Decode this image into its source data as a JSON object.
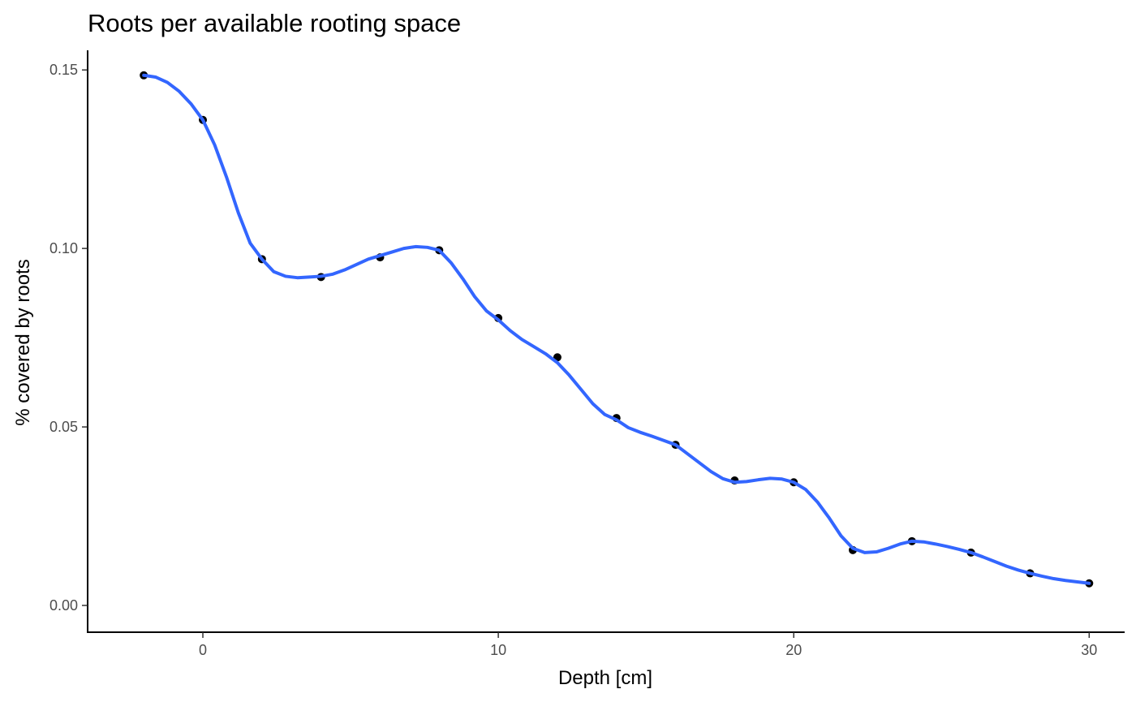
{
  "chart_data": {
    "type": "line",
    "title": "Roots per available rooting space",
    "xlabel": "Depth [cm]",
    "ylabel": "% covered by roots",
    "xlim": [
      -3.9,
      31.2
    ],
    "ylim": [
      -0.0075,
      0.1555
    ],
    "x_ticks": [
      0,
      10,
      20,
      30
    ],
    "x_tick_labels": [
      "0",
      "10",
      "20",
      "30"
    ],
    "y_ticks": [
      0.0,
      0.05,
      0.1,
      0.15
    ],
    "y_tick_labels": [
      "0.00",
      "0.05",
      "0.10",
      "0.15"
    ],
    "grid": false,
    "legend": "none",
    "points": {
      "x": [
        -2,
        0,
        2,
        4,
        6,
        8,
        10,
        12,
        14,
        16,
        18,
        20,
        22,
        24,
        26,
        28,
        30
      ],
      "y": [
        0.1485,
        0.136,
        0.097,
        0.092,
        0.0975,
        0.0995,
        0.0805,
        0.0695,
        0.0525,
        0.045,
        0.035,
        0.0345,
        0.0155,
        0.018,
        0.0148,
        0.009,
        0.0062
      ],
      "color": "#000000"
    },
    "smooth_line": {
      "x": [
        -2,
        -1.6,
        -1.2,
        -0.8,
        -0.4,
        0,
        0.4,
        0.8,
        1.2,
        1.6,
        2,
        2.4,
        2.8,
        3.2,
        3.6,
        4,
        4.4,
        4.8,
        5.2,
        5.6,
        6,
        6.4,
        6.8,
        7.2,
        7.6,
        8,
        8.4,
        8.8,
        9.2,
        9.6,
        10,
        10.4,
        10.8,
        11.2,
        11.6,
        12,
        12.4,
        12.8,
        13.2,
        13.6,
        14,
        14.4,
        14.8,
        15.2,
        15.6,
        16,
        16.4,
        16.8,
        17.2,
        17.6,
        18,
        18.4,
        18.8,
        19.2,
        19.6,
        20,
        20.4,
        20.8,
        21.2,
        21.6,
        22,
        22.4,
        22.8,
        23.2,
        23.6,
        24,
        24.4,
        24.8,
        25.2,
        25.6,
        26,
        26.4,
        26.8,
        27.2,
        27.6,
        28,
        28.4,
        28.8,
        29.2,
        29.6,
        30
      ],
      "y": [
        0.1485,
        0.148,
        0.1465,
        0.144,
        0.1405,
        0.136,
        0.129,
        0.12,
        0.11,
        0.1015,
        0.097,
        0.0935,
        0.0922,
        0.0918,
        0.092,
        0.0922,
        0.0928,
        0.094,
        0.0955,
        0.097,
        0.098,
        0.099,
        0.1,
        0.1005,
        0.1003,
        0.0995,
        0.096,
        0.0915,
        0.0865,
        0.0825,
        0.08,
        0.077,
        0.0745,
        0.0725,
        0.0705,
        0.068,
        0.0645,
        0.0605,
        0.0565,
        0.0535,
        0.052,
        0.0498,
        0.0485,
        0.0474,
        0.0462,
        0.045,
        0.0425,
        0.04,
        0.0375,
        0.0355,
        0.0345,
        0.0347,
        0.0352,
        0.0356,
        0.0354,
        0.0345,
        0.0325,
        0.029,
        0.0245,
        0.0195,
        0.016,
        0.0148,
        0.015,
        0.016,
        0.0172,
        0.018,
        0.0178,
        0.0172,
        0.0165,
        0.0157,
        0.0148,
        0.0136,
        0.0123,
        0.011,
        0.0099,
        0.009,
        0.0082,
        0.0075,
        0.007,
        0.0066,
        0.0062
      ],
      "color": "#3366ff"
    }
  }
}
